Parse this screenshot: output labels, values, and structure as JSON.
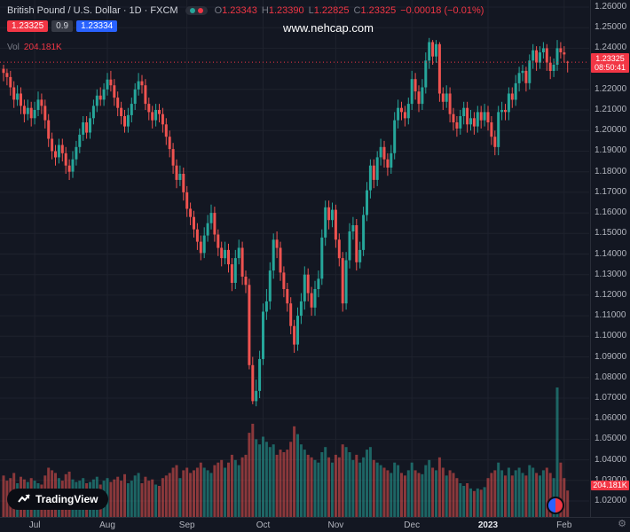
{
  "header": {
    "symbol_title": "British Pound / U.S. Dollar · 1D · FXCM",
    "ohlc": {
      "o_label": "O",
      "o": "1.23343",
      "h_label": "H",
      "h": "1.23390",
      "l_label": "L",
      "l": "1.22825",
      "c_label": "C",
      "c": "1.23325",
      "change": "−0.00018 (−0.01%)"
    },
    "bid": "1.23325",
    "spread": "0.9",
    "ask": "1.23334",
    "vol_label": "Vol",
    "vol_value": "204.181K"
  },
  "watermark": {
    "text": "www.nehcap.com"
  },
  "badges": {
    "price": "1.23325",
    "countdown": "08:50:41",
    "volume": "204.181K"
  },
  "footer": {
    "logo_text": "TradingView"
  },
  "icons": {
    "gear": "⚙"
  },
  "colors": {
    "background": "#131722",
    "up": "#26a69a",
    "down": "#ef5350",
    "badge_red": "#f23645",
    "badge_blue": "#2962ff",
    "axis_text": "#b2b5be",
    "dim_text": "#787b86",
    "grid": "#1e222d"
  },
  "axis": {
    "price_ticks": [
      "1.26000",
      "1.25000",
      "1.24000",
      "1.23000",
      "1.22000",
      "1.21000",
      "1.20000",
      "1.19000",
      "1.18000",
      "1.17000",
      "1.16000",
      "1.15000",
      "1.14000",
      "1.13000",
      "1.12000",
      "1.11000",
      "1.10000",
      "1.09000",
      "1.08000",
      "1.07000",
      "1.06000",
      "1.05000",
      "1.04000",
      "1.03000",
      "1.02000"
    ]
  },
  "chart_data": {
    "type": "candlestick",
    "title": "British Pound / U.S. Dollar",
    "interval": "1D",
    "exchange": "FXCM",
    "ylim": [
      1.02,
      1.26
    ],
    "volume_unit": "K",
    "last": {
      "close": 1.23325,
      "change": -0.00018,
      "change_pct": -0.01,
      "volume_k": 204.181
    },
    "time_ticks": [
      {
        "label": "Jul",
        "index": 9
      },
      {
        "label": "Aug",
        "index": 30
      },
      {
        "label": "Sep",
        "index": 53
      },
      {
        "label": "Oct",
        "index": 75
      },
      {
        "label": "Nov",
        "index": 96
      },
      {
        "label": "Dec",
        "index": 118
      },
      {
        "label": "2023",
        "index": 140
      },
      {
        "label": "Feb",
        "index": 162
      }
    ],
    "candles": [
      [
        1.23,
        1.232,
        1.224,
        1.228,
        320
      ],
      [
        1.228,
        1.23,
        1.222,
        1.226,
        280
      ],
      [
        1.226,
        1.229,
        1.217,
        1.221,
        300
      ],
      [
        1.221,
        1.224,
        1.211,
        1.215,
        340
      ],
      [
        1.215,
        1.222,
        1.212,
        1.218,
        260
      ],
      [
        1.218,
        1.221,
        1.208,
        1.212,
        310
      ],
      [
        1.212,
        1.215,
        1.204,
        1.208,
        290
      ],
      [
        1.208,
        1.215,
        1.205,
        1.211,
        270
      ],
      [
        1.211,
        1.214,
        1.202,
        1.206,
        300
      ],
      [
        1.206,
        1.214,
        1.203,
        1.21,
        280
      ],
      [
        1.21,
        1.219,
        1.207,
        1.215,
        260
      ],
      [
        1.215,
        1.218,
        1.208,
        1.212,
        250
      ],
      [
        1.212,
        1.215,
        1.201,
        1.205,
        320
      ],
      [
        1.205,
        1.208,
        1.192,
        1.196,
        380
      ],
      [
        1.196,
        1.199,
        1.186,
        1.19,
        360
      ],
      [
        1.19,
        1.193,
        1.183,
        1.187,
        340
      ],
      [
        1.187,
        1.196,
        1.184,
        1.193,
        300
      ],
      [
        1.193,
        1.196,
        1.185,
        1.189,
        280
      ],
      [
        1.189,
        1.192,
        1.179,
        1.183,
        330
      ],
      [
        1.183,
        1.186,
        1.176,
        1.18,
        350
      ],
      [
        1.18,
        1.19,
        1.177,
        1.186,
        290
      ],
      [
        1.186,
        1.195,
        1.183,
        1.192,
        270
      ],
      [
        1.192,
        1.201,
        1.189,
        1.198,
        280
      ],
      [
        1.198,
        1.207,
        1.195,
        1.204,
        300
      ],
      [
        1.204,
        1.207,
        1.196,
        1.199,
        260
      ],
      [
        1.199,
        1.209,
        1.196,
        1.206,
        270
      ],
      [
        1.206,
        1.215,
        1.203,
        1.212,
        290
      ],
      [
        1.212,
        1.22,
        1.209,
        1.217,
        310
      ],
      [
        1.217,
        1.221,
        1.212,
        1.215,
        250
      ],
      [
        1.215,
        1.223,
        1.212,
        1.22,
        280
      ],
      [
        1.22,
        1.228,
        1.217,
        1.2248,
        300
      ],
      [
        1.2248,
        1.229,
        1.219,
        1.222,
        270
      ],
      [
        1.222,
        1.225,
        1.212,
        1.216,
        290
      ],
      [
        1.216,
        1.219,
        1.207,
        1.211,
        310
      ],
      [
        1.211,
        1.214,
        1.203,
        1.207,
        280
      ],
      [
        1.207,
        1.21,
        1.199,
        1.202,
        330
      ],
      [
        1.202,
        1.211,
        1.199,
        1.2075,
        260
      ],
      [
        1.2075,
        1.216,
        1.204,
        1.213,
        280
      ],
      [
        1.213,
        1.223,
        1.21,
        1.22,
        320
      ],
      [
        1.22,
        1.228,
        1.217,
        1.224,
        340
      ],
      [
        1.224,
        1.227,
        1.218,
        1.222,
        260
      ],
      [
        1.222,
        1.225,
        1.21,
        1.213,
        310
      ],
      [
        1.213,
        1.216,
        1.205,
        1.209,
        280
      ],
      [
        1.209,
        1.212,
        1.201,
        1.205,
        290
      ],
      [
        1.205,
        1.213,
        1.202,
        1.21,
        250
      ],
      [
        1.21,
        1.213,
        1.204,
        1.208,
        240
      ],
      [
        1.208,
        1.211,
        1.199,
        1.203,
        300
      ],
      [
        1.203,
        1.206,
        1.193,
        1.197,
        320
      ],
      [
        1.197,
        1.2,
        1.187,
        1.191,
        340
      ],
      [
        1.191,
        1.194,
        1.179,
        1.183,
        380
      ],
      [
        1.183,
        1.186,
        1.172,
        1.176,
        400
      ],
      [
        1.176,
        1.183,
        1.173,
        1.179,
        300
      ],
      [
        1.179,
        1.182,
        1.166,
        1.17,
        360
      ],
      [
        1.17,
        1.173,
        1.158,
        1.162,
        380
      ],
      [
        1.162,
        1.165,
        1.154,
        1.158,
        340
      ],
      [
        1.158,
        1.161,
        1.148,
        1.152,
        360
      ],
      [
        1.152,
        1.155,
        1.142,
        1.146,
        380
      ],
      [
        1.146,
        1.149,
        1.137,
        1.1405,
        420
      ],
      [
        1.1405,
        1.153,
        1.138,
        1.149,
        380
      ],
      [
        1.149,
        1.159,
        1.146,
        1.155,
        360
      ],
      [
        1.155,
        1.164,
        1.152,
        1.16,
        340
      ],
      [
        1.16,
        1.163,
        1.146,
        1.1495,
        400
      ],
      [
        1.1495,
        1.152,
        1.139,
        1.143,
        420
      ],
      [
        1.143,
        1.146,
        1.134,
        1.138,
        440
      ],
      [
        1.138,
        1.146,
        1.135,
        1.142,
        380
      ],
      [
        1.142,
        1.145,
        1.131,
        1.135,
        420
      ],
      [
        1.135,
        1.138,
        1.122,
        1.126,
        480
      ],
      [
        1.126,
        1.142,
        1.123,
        1.138,
        440
      ],
      [
        1.138,
        1.147,
        1.135,
        1.143,
        400
      ],
      [
        1.143,
        1.146,
        1.125,
        1.129,
        460
      ],
      [
        1.129,
        1.132,
        1.121,
        1.125,
        480
      ],
      [
        1.125,
        1.128,
        1.084,
        1.086,
        650
      ],
      [
        1.086,
        1.09,
        1.067,
        1.0685,
        720
      ],
      [
        1.0685,
        1.079,
        1.066,
        1.0735,
        600
      ],
      [
        1.0735,
        1.093,
        1.07,
        1.089,
        560
      ],
      [
        1.089,
        1.116,
        1.086,
        1.112,
        620
      ],
      [
        1.112,
        1.123,
        1.108,
        1.117,
        580
      ],
      [
        1.117,
        1.136,
        1.113,
        1.132,
        540
      ],
      [
        1.132,
        1.15,
        1.128,
        1.147,
        560
      ],
      [
        1.147,
        1.151,
        1.138,
        1.143,
        480
      ],
      [
        1.143,
        1.146,
        1.127,
        1.131,
        520
      ],
      [
        1.131,
        1.134,
        1.119,
        1.123,
        500
      ],
      [
        1.123,
        1.126,
        1.112,
        1.116,
        520
      ],
      [
        1.116,
        1.119,
        1.101,
        1.105,
        580
      ],
      [
        1.105,
        1.108,
        1.092,
        1.096,
        700
      ],
      [
        1.096,
        1.114,
        1.093,
        1.11,
        640
      ],
      [
        1.11,
        1.121,
        1.106,
        1.117,
        560
      ],
      [
        1.117,
        1.134,
        1.113,
        1.13,
        520
      ],
      [
        1.13,
        1.133,
        1.117,
        1.121,
        480
      ],
      [
        1.121,
        1.124,
        1.11,
        1.114,
        460
      ],
      [
        1.114,
        1.127,
        1.11,
        1.123,
        440
      ],
      [
        1.123,
        1.132,
        1.119,
        1.128,
        420
      ],
      [
        1.128,
        1.152,
        1.125,
        1.148,
        500
      ],
      [
        1.148,
        1.166,
        1.144,
        1.1627,
        540
      ],
      [
        1.1627,
        1.166,
        1.152,
        1.1565,
        460
      ],
      [
        1.1565,
        1.165,
        1.153,
        1.1615,
        420
      ],
      [
        1.1615,
        1.164,
        1.143,
        1.147,
        480
      ],
      [
        1.147,
        1.15,
        1.134,
        1.138,
        460
      ],
      [
        1.138,
        1.141,
        1.112,
        1.116,
        560
      ],
      [
        1.116,
        1.141,
        1.113,
        1.137,
        540
      ],
      [
        1.137,
        1.155,
        1.133,
        1.151,
        500
      ],
      [
        1.151,
        1.158,
        1.147,
        1.154,
        440
      ],
      [
        1.154,
        1.157,
        1.132,
        1.136,
        480
      ],
      [
        1.136,
        1.146,
        1.133,
        1.142,
        420
      ],
      [
        1.142,
        1.163,
        1.139,
        1.159,
        460
      ],
      [
        1.159,
        1.175,
        1.156,
        1.171,
        520
      ],
      [
        1.171,
        1.186,
        1.167,
        1.183,
        540
      ],
      [
        1.183,
        1.186,
        1.172,
        1.176,
        440
      ],
      [
        1.176,
        1.19,
        1.173,
        1.187,
        420
      ],
      [
        1.187,
        1.196,
        1.183,
        1.192,
        400
      ],
      [
        1.192,
        1.195,
        1.182,
        1.186,
        380
      ],
      [
        1.186,
        1.189,
        1.178,
        1.182,
        360
      ],
      [
        1.182,
        1.193,
        1.179,
        1.189,
        340
      ],
      [
        1.189,
        1.209,
        1.186,
        1.205,
        420
      ],
      [
        1.205,
        1.215,
        1.201,
        1.211,
        400
      ],
      [
        1.211,
        1.214,
        1.205,
        1.209,
        340
      ],
      [
        1.209,
        1.212,
        1.202,
        1.206,
        320
      ],
      [
        1.206,
        1.216,
        1.203,
        1.213,
        360
      ],
      [
        1.213,
        1.229,
        1.21,
        1.225,
        420
      ],
      [
        1.225,
        1.228,
        1.215,
        1.219,
        360
      ],
      [
        1.219,
        1.222,
        1.209,
        1.213,
        340
      ],
      [
        1.213,
        1.225,
        1.21,
        1.221,
        330
      ],
      [
        1.221,
        1.238,
        1.218,
        1.234,
        400
      ],
      [
        1.234,
        1.245,
        1.23,
        1.243,
        440
      ],
      [
        1.243,
        1.244,
        1.232,
        1.236,
        380
      ],
      [
        1.236,
        1.244,
        1.233,
        1.242,
        360
      ],
      [
        1.242,
        1.243,
        1.214,
        1.218,
        460
      ],
      [
        1.218,
        1.221,
        1.21,
        1.214,
        380
      ],
      [
        1.214,
        1.222,
        1.211,
        1.218,
        320
      ],
      [
        1.218,
        1.221,
        1.204,
        1.208,
        360
      ],
      [
        1.208,
        1.211,
        1.2,
        1.204,
        340
      ],
      [
        1.204,
        1.207,
        1.197,
        1.201,
        300
      ],
      [
        1.201,
        1.21,
        1.198,
        1.207,
        260
      ],
      [
        1.207,
        1.214,
        1.203,
        1.211,
        240
      ],
      [
        1.211,
        1.214,
        1.199,
        1.203,
        260
      ],
      [
        1.203,
        1.21,
        1.2,
        1.206,
        220
      ],
      [
        1.206,
        1.209,
        1.198,
        1.202,
        200
      ],
      [
        1.202,
        1.212,
        1.199,
        1.209,
        220
      ],
      [
        1.209,
        1.212,
        1.201,
        1.205,
        210
      ],
      [
        1.205,
        1.213,
        1.202,
        1.209,
        230
      ],
      [
        1.209,
        1.212,
        1.2,
        1.204,
        300
      ],
      [
        1.204,
        1.207,
        1.193,
        1.197,
        340
      ],
      [
        1.197,
        1.2,
        1.188,
        1.192,
        360
      ],
      [
        1.192,
        1.212,
        1.188,
        1.209,
        420
      ],
      [
        1.209,
        1.214,
        1.205,
        1.21,
        360
      ],
      [
        1.21,
        1.213,
        1.205,
        1.209,
        320
      ],
      [
        1.209,
        1.221,
        1.205,
        1.218,
        380
      ],
      [
        1.218,
        1.221,
        1.211,
        1.215,
        320
      ],
      [
        1.215,
        1.227,
        1.212,
        1.223,
        360
      ],
      [
        1.223,
        1.231,
        1.219,
        1.228,
        380
      ],
      [
        1.228,
        1.232,
        1.224,
        1.229,
        340
      ],
      [
        1.229,
        1.231,
        1.219,
        1.223,
        320
      ],
      [
        1.223,
        1.237,
        1.22,
        1.234,
        400
      ],
      [
        1.234,
        1.242,
        1.23,
        1.239,
        380
      ],
      [
        1.239,
        1.241,
        1.229,
        1.233,
        340
      ],
      [
        1.233,
        1.241,
        1.23,
        1.238,
        320
      ],
      [
        1.238,
        1.243,
        1.235,
        1.24,
        360
      ],
      [
        1.24,
        1.242,
        1.229,
        1.233,
        380
      ],
      [
        1.233,
        1.236,
        1.225,
        1.229,
        340
      ],
      [
        1.229,
        1.235,
        1.226,
        1.232,
        300
      ],
      [
        1.232,
        1.244,
        1.229,
        1.24,
        1000
      ],
      [
        1.24,
        1.243,
        1.235,
        1.238,
        420
      ],
      [
        1.238,
        1.241,
        1.233,
        1.237,
        300
      ],
      [
        1.23343,
        1.2339,
        1.22825,
        1.23325,
        204.181
      ]
    ]
  }
}
